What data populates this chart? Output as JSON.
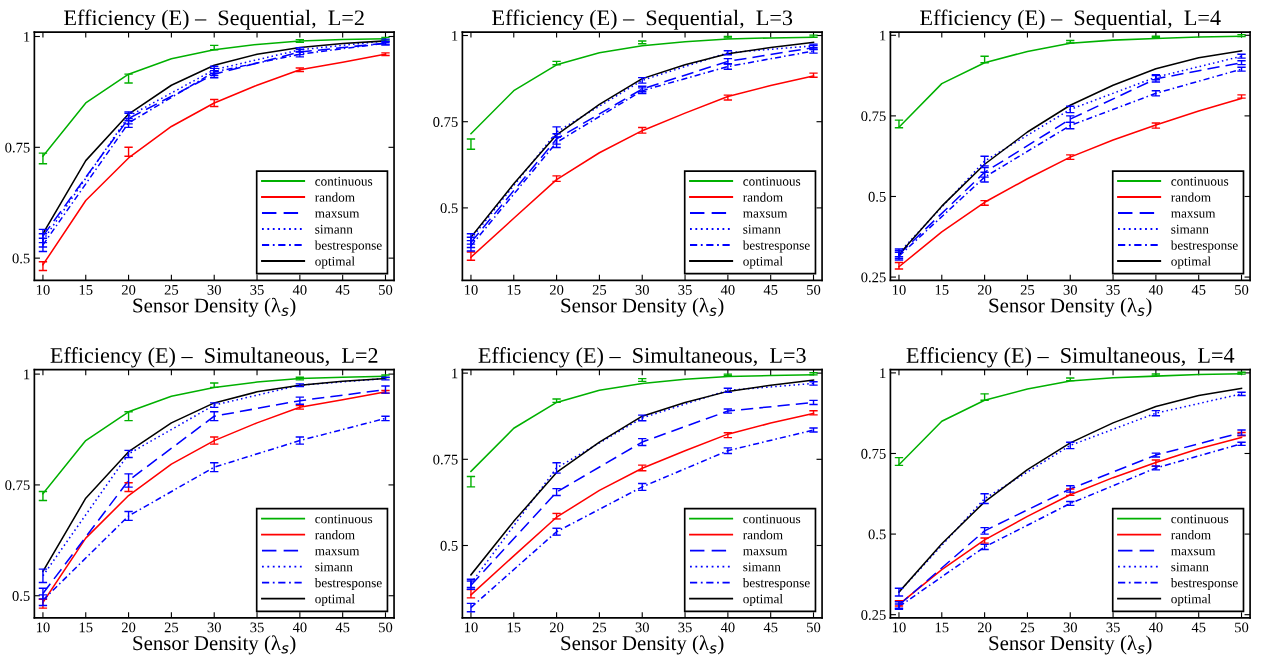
{
  "chart_data": [
    {
      "type": "line",
      "title": "Efficiency (E) –  Sequential,  L=2",
      "xlabel": "Sensor Density (λ$_{s}$)",
      "xlim": [
        9,
        51
      ],
      "xticks": [
        10,
        15,
        20,
        25,
        30,
        35,
        40,
        45,
        50
      ],
      "ylim": [
        0.45,
        1.01
      ],
      "yticks": [
        0.5,
        0.75,
        1
      ],
      "legend": "bottom right",
      "grid": false,
      "marker": "none",
      "series": [
        {
          "name": "continuous",
          "color": "#00b000",
          "line_style": "solid",
          "x": [
            10,
            15,
            20,
            25,
            30,
            35,
            40,
            45,
            50
          ],
          "values": [
            0.73,
            0.85,
            0.915,
            0.95,
            0.97,
            0.982,
            0.99,
            0.993,
            0.995
          ],
          "errors": [
            [
              0.713,
              0.737
            ],
            null,
            [
              0.895,
              0.915
            ],
            null,
            [
              0.97,
              0.98
            ],
            null,
            [
              0.987,
              0.993
            ],
            null,
            [
              0.992,
              0.998
            ]
          ]
        },
        {
          "name": "random",
          "color": "#ff0000",
          "line_style": "solid",
          "x": [
            10,
            15,
            20,
            25,
            30,
            35,
            40,
            45,
            50
          ],
          "values": [
            0.485,
            0.63,
            0.726,
            0.797,
            0.85,
            0.89,
            0.925,
            0.942,
            0.96
          ],
          "errors": [
            [
              0.472,
              0.492
            ],
            null,
            [
              0.73,
              0.75
            ],
            null,
            [
              0.842,
              0.858
            ],
            null,
            [
              0.921,
              0.929
            ],
            null,
            [
              0.957,
              0.963
            ]
          ]
        },
        {
          "name": "maxsum",
          "color": "#0000ff",
          "line_style": "dashed",
          "x": [
            10,
            20,
            30,
            40,
            50
          ],
          "values": [
            0.55,
            0.815,
            0.915,
            0.965,
            0.985
          ],
          "errors": [
            0.015,
            0.012,
            0.008,
            0.006,
            0.004
          ]
        },
        {
          "name": "simann",
          "color": "#0000ff",
          "line_style": "dotted",
          "x": [
            10,
            20,
            30,
            40,
            50
          ],
          "values": [
            0.54,
            0.82,
            0.925,
            0.97,
            0.99
          ],
          "errors": [
            0.015,
            0.01,
            0.008,
            0.005,
            0.004
          ]
        },
        {
          "name": "bestresponse",
          "color": "#0000ff",
          "line_style": "dashdot",
          "x": [
            10,
            20,
            30,
            40,
            50
          ],
          "values": [
            0.53,
            0.805,
            0.92,
            0.96,
            0.985
          ],
          "errors": [
            0.015,
            0.01,
            0.008,
            0.006,
            0.004
          ]
        },
        {
          "name": "optimal",
          "color": "#000000",
          "line_style": "solid",
          "x": [
            10,
            15,
            20,
            25,
            30,
            35,
            40,
            45,
            50
          ],
          "values": [
            0.555,
            0.72,
            0.825,
            0.89,
            0.935,
            0.96,
            0.975,
            0.984,
            0.99
          ]
        }
      ]
    },
    {
      "type": "line",
      "title": "Efficiency (E) –  Sequential,  L=3",
      "xlabel": "Sensor Density (λ$_{s}$)",
      "xlim": [
        9,
        51
      ],
      "xticks": [
        10,
        15,
        20,
        25,
        30,
        35,
        40,
        45,
        50
      ],
      "ylim": [
        0.29,
        1.01
      ],
      "yticks": [
        0.5,
        0.75,
        1
      ],
      "legend": "bottom right",
      "grid": false,
      "marker": "none",
      "series": [
        {
          "name": "continuous",
          "color": "#00b000",
          "line_style": "solid",
          "x": [
            10,
            15,
            20,
            25,
            30,
            35,
            40,
            45,
            50
          ],
          "values": [
            0.715,
            0.84,
            0.915,
            0.95,
            0.97,
            0.982,
            0.99,
            0.993,
            0.995
          ],
          "errors": [
            [
              0.67,
              0.7
            ],
            null,
            [
              0.915,
              0.925
            ],
            null,
            [
              0.976,
              0.984
            ],
            null,
            [
              0.993,
              0.997
            ],
            null,
            [
              0.995,
              1.001
            ]
          ]
        },
        {
          "name": "random",
          "color": "#ff0000",
          "line_style": "solid",
          "x": [
            10,
            15,
            20,
            25,
            30,
            35,
            40,
            45,
            50
          ],
          "values": [
            0.357,
            0.47,
            0.582,
            0.66,
            0.724,
            0.775,
            0.823,
            0.855,
            0.883
          ],
          "errors": [
            [
              0.348,
              0.372
            ],
            null,
            [
              0.577,
              0.593
            ],
            null,
            [
              0.717,
              0.733
            ],
            null,
            [
              0.813,
              0.827
            ],
            null,
            [
              0.879,
              0.891
            ]
          ]
        },
        {
          "name": "maxsum",
          "color": "#0000ff",
          "line_style": "dashed",
          "x": [
            10,
            20,
            30,
            40,
            50
          ],
          "values": [
            0.4,
            0.7,
            0.845,
            0.925,
            0.965
          ],
          "errors": [
            0.015,
            0.015,
            0.008,
            0.008,
            0.006
          ]
        },
        {
          "name": "simann",
          "color": "#0000ff",
          "line_style": "dotted",
          "x": [
            10,
            20,
            30,
            40,
            50
          ],
          "values": [
            0.41,
            0.72,
            0.87,
            0.95,
            0.97
          ],
          "errors": [
            0.015,
            0.015,
            0.008,
            0.006,
            0.005
          ]
        },
        {
          "name": "bestresponse",
          "color": "#0000ff",
          "line_style": "dashdot",
          "x": [
            10,
            20,
            30,
            40,
            50
          ],
          "values": [
            0.39,
            0.69,
            0.84,
            0.91,
            0.955
          ],
          "errors": [
            0.015,
            0.015,
            0.008,
            0.008,
            0.006
          ]
        },
        {
          "name": "optimal",
          "color": "#000000",
          "line_style": "solid",
          "x": [
            10,
            15,
            20,
            25,
            30,
            35,
            40,
            45,
            50
          ],
          "values": [
            0.415,
            0.57,
            0.712,
            0.8,
            0.875,
            0.915,
            0.947,
            0.965,
            0.98
          ]
        }
      ]
    },
    {
      "type": "line",
      "title": "Efficiency (E) –  Sequential,  L=4",
      "xlabel": "Sensor Density (λ$_{s}$)",
      "xlim": [
        9,
        51
      ],
      "xticks": [
        10,
        15,
        20,
        25,
        30,
        35,
        40,
        45,
        50
      ],
      "ylim": [
        0.24,
        1.01
      ],
      "yticks": [
        0.25,
        0.5,
        0.75,
        1
      ],
      "legend": "bottom right",
      "grid": false,
      "marker": "none",
      "series": [
        {
          "name": "continuous",
          "color": "#00b000",
          "line_style": "solid",
          "x": [
            10,
            15,
            20,
            25,
            30,
            35,
            40,
            45,
            50
          ],
          "values": [
            0.715,
            0.85,
            0.915,
            0.95,
            0.975,
            0.985,
            0.99,
            0.995,
            0.997
          ],
          "errors": [
            [
              0.713,
              0.737
            ],
            null,
            [
              0.915,
              0.935
            ],
            null,
            [
              0.976,
              0.984
            ],
            null,
            [
              0.993,
              0.997
            ],
            null,
            [
              0.996,
              1.002
            ]
          ]
        },
        {
          "name": "random",
          "color": "#ff0000",
          "line_style": "solid",
          "x": [
            10,
            15,
            20,
            25,
            30,
            35,
            40,
            45,
            50
          ],
          "values": [
            0.282,
            0.39,
            0.482,
            0.555,
            0.622,
            0.675,
            0.722,
            0.765,
            0.804
          ],
          "errors": [
            [
              0.275,
              0.295
            ],
            null,
            [
              0.473,
              0.487
            ],
            null,
            [
              0.615,
              0.629
            ],
            null,
            [
              0.712,
              0.728
            ],
            null,
            [
              0.805,
              0.815
            ]
          ]
        },
        {
          "name": "maxsum",
          "color": "#0000ff",
          "line_style": "dashed",
          "x": [
            10,
            20,
            30,
            40,
            50
          ],
          "values": [
            0.32,
            0.575,
            0.74,
            0.865,
            0.915
          ],
          "errors": [
            0.012,
            0.015,
            0.01,
            0.01,
            0.006
          ]
        },
        {
          "name": "simann",
          "color": "#0000ff",
          "line_style": "dotted",
          "x": [
            10,
            20,
            30,
            40,
            50
          ],
          "values": [
            0.325,
            0.61,
            0.77,
            0.87,
            0.935
          ],
          "errors": [
            0.012,
            0.015,
            0.01,
            0.008,
            0.006
          ]
        },
        {
          "name": "bestresponse",
          "color": "#0000ff",
          "line_style": "dashdot",
          "x": [
            10,
            20,
            30,
            40,
            50
          ],
          "values": [
            0.315,
            0.56,
            0.72,
            0.82,
            0.895
          ],
          "errors": [
            0.012,
            0.015,
            0.01,
            0.008,
            0.006
          ]
        },
        {
          "name": "optimal",
          "color": "#000000",
          "line_style": "solid",
          "x": [
            10,
            15,
            20,
            25,
            30,
            35,
            40,
            45,
            50
          ],
          "values": [
            0.32,
            0.47,
            0.6,
            0.7,
            0.783,
            0.845,
            0.896,
            0.93,
            0.952
          ]
        }
      ]
    },
    {
      "type": "line",
      "title": "Efficiency (E) –  Simultaneous,  L=2",
      "xlabel": "Sensor Density (λ$_{s}$)",
      "xlim": [
        9,
        51
      ],
      "xticks": [
        10,
        15,
        20,
        25,
        30,
        35,
        40,
        45,
        50
      ],
      "ylim": [
        0.45,
        1.01
      ],
      "yticks": [
        0.5,
        0.75,
        1
      ],
      "legend": "bottom right",
      "grid": false,
      "marker": "none",
      "series": [
        {
          "name": "continuous",
          "color": "#00b000",
          "line_style": "solid",
          "x": [
            10,
            15,
            20,
            25,
            30,
            35,
            40,
            45,
            50
          ],
          "values": [
            0.73,
            0.85,
            0.915,
            0.95,
            0.97,
            0.982,
            0.99,
            0.993,
            0.995
          ],
          "errors": [
            [
              0.715,
              0.735
            ],
            null,
            [
              0.895,
              0.915
            ],
            null,
            [
              0.97,
              0.98
            ],
            null,
            [
              0.987,
              0.993
            ],
            null,
            [
              0.992,
              0.998
            ]
          ]
        },
        {
          "name": "random",
          "color": "#ff0000",
          "line_style": "solid",
          "x": [
            10,
            15,
            20,
            25,
            30,
            35,
            40,
            45,
            50
          ],
          "values": [
            0.485,
            0.63,
            0.726,
            0.797,
            0.85,
            0.89,
            0.925,
            0.942,
            0.96
          ],
          "errors": [
            [
              0.472,
              0.492
            ],
            null,
            [
              0.735,
              0.755
            ],
            null,
            [
              0.842,
              0.858
            ],
            null,
            [
              0.921,
              0.929
            ],
            null,
            [
              0.957,
              0.963
            ]
          ]
        },
        {
          "name": "maxsum",
          "color": "#0000ff",
          "line_style": "dashed",
          "x": [
            10,
            20,
            30,
            40,
            50
          ],
          "values": [
            0.505,
            0.76,
            0.905,
            0.94,
            0.965
          ],
          "errors": [
            0.012,
            0.015,
            0.01,
            0.008,
            0.008
          ]
        },
        {
          "name": "simann",
          "color": "#0000ff",
          "line_style": "dotted",
          "x": [
            10,
            20,
            30,
            40,
            50
          ],
          "values": [
            0.545,
            0.82,
            0.93,
            0.975,
            0.99
          ],
          "errors": [
            0.015,
            0.008,
            0.005,
            0.003,
            0.003
          ]
        },
        {
          "name": "bestresponse",
          "color": "#0000ff",
          "line_style": "dashdot",
          "x": [
            10,
            20,
            30,
            40,
            50
          ],
          "values": [
            0.49,
            0.68,
            0.79,
            0.85,
            0.9
          ],
          "errors": [
            0.012,
            0.01,
            0.01,
            0.008,
            0.005
          ]
        },
        {
          "name": "optimal",
          "color": "#000000",
          "line_style": "solid",
          "x": [
            10,
            15,
            20,
            25,
            30,
            35,
            40,
            45,
            50
          ],
          "values": [
            0.555,
            0.72,
            0.825,
            0.89,
            0.935,
            0.96,
            0.975,
            0.984,
            0.99
          ]
        }
      ]
    },
    {
      "type": "line",
      "title": "Efficiency (E) –  Simultaneous,  L=3",
      "xlabel": "Sensor Density (λ$_{s}$)",
      "xlim": [
        9,
        51
      ],
      "xticks": [
        10,
        15,
        20,
        25,
        30,
        35,
        40,
        45,
        50
      ],
      "ylim": [
        0.29,
        1.01
      ],
      "yticks": [
        0.5,
        0.75,
        1
      ],
      "legend": "bottom right",
      "grid": false,
      "marker": "none",
      "series": [
        {
          "name": "continuous",
          "color": "#00b000",
          "line_style": "solid",
          "x": [
            10,
            15,
            20,
            25,
            30,
            35,
            40,
            45,
            50
          ],
          "values": [
            0.715,
            0.84,
            0.915,
            0.95,
            0.97,
            0.982,
            0.99,
            0.993,
            0.995
          ],
          "errors": [
            [
              0.67,
              0.7
            ],
            null,
            [
              0.915,
              0.925
            ],
            null,
            [
              0.976,
              0.984
            ],
            null,
            [
              0.993,
              0.997
            ],
            null,
            [
              0.995,
              1.001
            ]
          ]
        },
        {
          "name": "random",
          "color": "#ff0000",
          "line_style": "solid",
          "x": [
            10,
            15,
            20,
            25,
            30,
            35,
            40,
            45,
            50
          ],
          "values": [
            0.357,
            0.47,
            0.582,
            0.66,
            0.724,
            0.775,
            0.823,
            0.855,
            0.883
          ],
          "errors": [
            [
              0.348,
              0.372
            ],
            null,
            [
              0.577,
              0.593
            ],
            null,
            [
              0.717,
              0.733
            ],
            null,
            [
              0.813,
              0.827
            ],
            null,
            [
              0.879,
              0.891
            ]
          ]
        },
        {
          "name": "maxsum",
          "color": "#0000ff",
          "line_style": "dashed",
          "x": [
            10,
            20,
            30,
            40,
            50
          ],
          "values": [
            0.385,
            0.655,
            0.8,
            0.89,
            0.915
          ],
          "errors": [
            0.012,
            0.01,
            0.01,
            0.006,
            0.006
          ]
        },
        {
          "name": "simann",
          "color": "#0000ff",
          "line_style": "dotted",
          "x": [
            10,
            20,
            30,
            40,
            50
          ],
          "values": [
            0.39,
            0.725,
            0.87,
            0.95,
            0.97
          ],
          "errors": [
            0.012,
            0.015,
            0.008,
            0.006,
            0.005
          ]
        },
        {
          "name": "bestresponse",
          "color": "#0000ff",
          "line_style": "dashdot",
          "x": [
            10,
            20,
            30,
            40,
            50
          ],
          "values": [
            0.32,
            0.54,
            0.67,
            0.775,
            0.835
          ],
          "errors": [
            0.012,
            0.01,
            0.01,
            0.008,
            0.006
          ]
        },
        {
          "name": "optimal",
          "color": "#000000",
          "line_style": "solid",
          "x": [
            10,
            15,
            20,
            25,
            30,
            35,
            40,
            45,
            50
          ],
          "values": [
            0.415,
            0.57,
            0.712,
            0.8,
            0.875,
            0.915,
            0.947,
            0.965,
            0.98
          ]
        }
      ]
    },
    {
      "type": "line",
      "title": "Efficiency (E) –  Simultaneous,  L=4",
      "xlabel": "Sensor Density (λ$_{s}$)",
      "xlim": [
        9,
        51
      ],
      "xticks": [
        10,
        15,
        20,
        25,
        30,
        35,
        40,
        45,
        50
      ],
      "ylim": [
        0.24,
        1.01
      ],
      "yticks": [
        0.25,
        0.5,
        0.75,
        1
      ],
      "legend": "bottom right",
      "grid": false,
      "marker": "none",
      "series": [
        {
          "name": "continuous",
          "color": "#00b000",
          "line_style": "solid",
          "x": [
            10,
            15,
            20,
            25,
            30,
            35,
            40,
            45,
            50
          ],
          "values": [
            0.715,
            0.85,
            0.915,
            0.95,
            0.975,
            0.985,
            0.99,
            0.995,
            0.997
          ],
          "errors": [
            [
              0.713,
              0.737
            ],
            null,
            [
              0.915,
              0.935
            ],
            null,
            [
              0.976,
              0.984
            ],
            null,
            [
              0.993,
              0.997
            ],
            null,
            [
              0.996,
              1.002
            ]
          ]
        },
        {
          "name": "random",
          "color": "#ff0000",
          "line_style": "solid",
          "x": [
            10,
            15,
            20,
            25,
            30,
            35,
            40,
            45,
            50
          ],
          "values": [
            0.282,
            0.39,
            0.482,
            0.555,
            0.622,
            0.675,
            0.722,
            0.765,
            0.8
          ],
          "errors": [
            [
              0.277,
              0.293
            ],
            null,
            [
              0.472,
              0.488
            ],
            null,
            [
              0.62,
              0.64
            ],
            null,
            [
              0.71,
              0.73
            ],
            null,
            [
              0.805,
              0.815
            ]
          ]
        },
        {
          "name": "maxsum",
          "color": "#0000ff",
          "line_style": "dashed",
          "x": [
            10,
            20,
            30,
            40,
            50
          ],
          "values": [
            0.28,
            0.51,
            0.64,
            0.745,
            0.815
          ],
          "errors": [
            0.01,
            0.01,
            0.01,
            0.006,
            0.008
          ]
        },
        {
          "name": "simann",
          "color": "#0000ff",
          "line_style": "dotted",
          "x": [
            10,
            20,
            30,
            40,
            50
          ],
          "values": [
            0.32,
            0.61,
            0.775,
            0.875,
            0.935
          ],
          "errors": [
            0.012,
            0.015,
            0.01,
            0.008,
            0.005
          ]
        },
        {
          "name": "bestresponse",
          "color": "#0000ff",
          "line_style": "dashdot",
          "x": [
            10,
            20,
            30,
            40,
            50
          ],
          "values": [
            0.275,
            0.46,
            0.595,
            0.705,
            0.78
          ],
          "errors": [
            0.008,
            0.008,
            0.006,
            0.006,
            0.005
          ]
        },
        {
          "name": "optimal",
          "color": "#000000",
          "line_style": "solid",
          "x": [
            10,
            15,
            20,
            25,
            30,
            35,
            40,
            45,
            50
          ],
          "values": [
            0.32,
            0.47,
            0.6,
            0.7,
            0.783,
            0.845,
            0.896,
            0.93,
            0.952
          ]
        }
      ]
    }
  ]
}
